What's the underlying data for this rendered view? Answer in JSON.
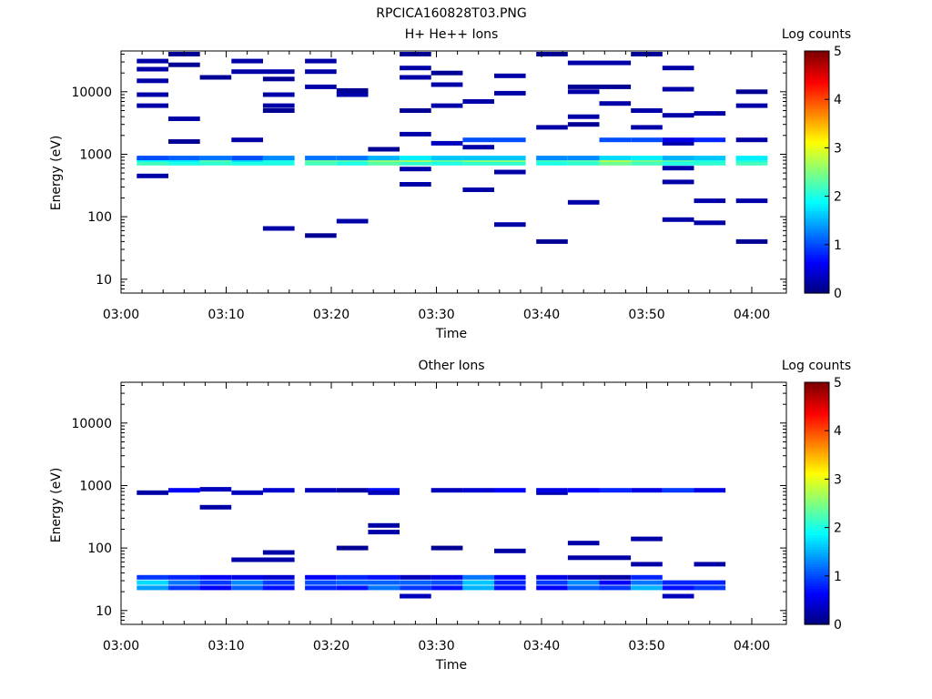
{
  "figure_title": "RPCICA160828T03.PNG",
  "chart_data": [
    {
      "type": "heatmap",
      "title": "H+ He++ Ions",
      "xlabel": "Time",
      "ylabel": "Energy (eV)",
      "colorbar_label": "Log counts",
      "colorbar_ticks": [
        "0",
        "1",
        "2",
        "3",
        "4",
        "5"
      ],
      "clim": [
        0,
        5
      ],
      "xlim": [
        "03:00",
        "04:00"
      ],
      "ylim": [
        6,
        45000
      ],
      "yscale": "log",
      "x_ticks": [
        "03:00",
        "03:10",
        "03:20",
        "03:30",
        "03:40",
        "03:50",
        "04:00"
      ],
      "y_ticks": [
        "10",
        "100",
        "1000",
        "10000"
      ],
      "time_bins": [
        "03:03",
        "03:06",
        "03:09",
        "03:12",
        "03:15",
        "03:19",
        "03:22",
        "03:25",
        "03:28",
        "03:31",
        "03:34",
        "03:37",
        "03:41",
        "03:44",
        "03:47",
        "03:50",
        "03:53",
        "03:56",
        "04:00"
      ],
      "cells": [
        [
          0,
          720,
          2.2
        ],
        [
          0,
          820,
          1.9
        ],
        [
          0,
          870,
          1.0
        ],
        [
          0,
          450,
          0.2
        ],
        [
          0,
          6000,
          0.2
        ],
        [
          0,
          9000,
          0.2
        ],
        [
          0,
          15000,
          0.2
        ],
        [
          0,
          23000,
          0.2
        ],
        [
          0,
          31000,
          0.2
        ],
        [
          1,
          720,
          2.0
        ],
        [
          1,
          820,
          1.8
        ],
        [
          1,
          870,
          1.1
        ],
        [
          1,
          1600,
          0.1
        ],
        [
          1,
          3700,
          0.2
        ],
        [
          1,
          27000,
          0.1
        ],
        [
          1,
          40000,
          0.1
        ],
        [
          2,
          720,
          2.1
        ],
        [
          2,
          820,
          2.3
        ],
        [
          2,
          870,
          1.2
        ],
        [
          2,
          17000,
          0.1
        ],
        [
          3,
          720,
          2.0
        ],
        [
          3,
          820,
          1.7
        ],
        [
          3,
          870,
          1.0
        ],
        [
          3,
          1700,
          0.2
        ],
        [
          3,
          21000,
          0.2
        ],
        [
          3,
          31000,
          0.2
        ],
        [
          4,
          720,
          2.0
        ],
        [
          4,
          820,
          2.0
        ],
        [
          4,
          870,
          1.3
        ],
        [
          4,
          65,
          0.2
        ],
        [
          4,
          5000,
          0.1
        ],
        [
          4,
          6000,
          0.2
        ],
        [
          4,
          9000,
          0.2
        ],
        [
          4,
          16000,
          0.1
        ],
        [
          4,
          21000,
          0.2
        ],
        [
          5,
          720,
          2.2
        ],
        [
          5,
          820,
          2.4
        ],
        [
          5,
          870,
          1.2
        ],
        [
          5,
          50,
          0.1
        ],
        [
          5,
          12000,
          0.2
        ],
        [
          5,
          21000,
          0.2
        ],
        [
          5,
          31000,
          0.2
        ],
        [
          6,
          720,
          2.0
        ],
        [
          6,
          820,
          2.3
        ],
        [
          6,
          870,
          1.2
        ],
        [
          6,
          85,
          0.2
        ],
        [
          6,
          9000,
          0.2
        ],
        [
          6,
          10500,
          0.1
        ],
        [
          7,
          720,
          2.3
        ],
        [
          7,
          820,
          2.6
        ],
        [
          7,
          870,
          1.5
        ],
        [
          7,
          1200,
          0.1
        ],
        [
          8,
          580,
          0.2
        ],
        [
          8,
          720,
          2.1
        ],
        [
          8,
          820,
          2.7
        ],
        [
          8,
          870,
          1.8
        ],
        [
          8,
          330,
          0.2
        ],
        [
          8,
          2100,
          0.2
        ],
        [
          8,
          5000,
          0.1
        ],
        [
          8,
          17000,
          0.2
        ],
        [
          8,
          24000,
          0.2
        ],
        [
          8,
          40000,
          0.1
        ],
        [
          9,
          720,
          2.0
        ],
        [
          9,
          820,
          2.4
        ],
        [
          9,
          870,
          1.6
        ],
        [
          9,
          1500,
          0.3
        ],
        [
          9,
          6000,
          0.2
        ],
        [
          9,
          13000,
          0.2
        ],
        [
          9,
          20000,
          0.1
        ],
        [
          10,
          720,
          2.1
        ],
        [
          10,
          820,
          2.6
        ],
        [
          10,
          870,
          1.6
        ],
        [
          10,
          1300,
          0.2
        ],
        [
          10,
          1700,
          1.0
        ],
        [
          10,
          270,
          0.2
        ],
        [
          10,
          7000,
          0.2
        ],
        [
          11,
          720,
          2.1
        ],
        [
          11,
          820,
          2.6
        ],
        [
          11,
          870,
          1.6
        ],
        [
          11,
          520,
          0.2
        ],
        [
          11,
          1700,
          1.0
        ],
        [
          11,
          75,
          0.2
        ],
        [
          11,
          9500,
          0.2
        ],
        [
          11,
          18000,
          0.2
        ],
        [
          12,
          720,
          2.0
        ],
        [
          12,
          820,
          2.2
        ],
        [
          12,
          870,
          1.3
        ],
        [
          12,
          40,
          0.1
        ],
        [
          12,
          2700,
          0.2
        ],
        [
          12,
          40000,
          0.1
        ],
        [
          13,
          720,
          2.1
        ],
        [
          13,
          820,
          2.3
        ],
        [
          13,
          870,
          1.3
        ],
        [
          13,
          170,
          0.2
        ],
        [
          13,
          3000,
          0.1
        ],
        [
          13,
          4000,
          0.2
        ],
        [
          13,
          10000,
          0.2
        ],
        [
          13,
          12000,
          0.1
        ],
        [
          13,
          29000,
          0.2
        ],
        [
          14,
          720,
          2.4
        ],
        [
          14,
          820,
          2.8
        ],
        [
          14,
          870,
          1.7
        ],
        [
          14,
          1700,
          1.0
        ],
        [
          14,
          6500,
          0.2
        ],
        [
          14,
          12000,
          0.1
        ],
        [
          14,
          29000,
          0.2
        ],
        [
          15,
          720,
          2.2
        ],
        [
          15,
          820,
          2.5
        ],
        [
          15,
          870,
          1.8
        ],
        [
          15,
          1700,
          1.0
        ],
        [
          15,
          2700,
          0.2
        ],
        [
          15,
          5000,
          0.2
        ],
        [
          15,
          40000,
          0.1
        ],
        [
          16,
          600,
          0.2
        ],
        [
          16,
          720,
          2.0
        ],
        [
          16,
          820,
          2.3
        ],
        [
          16,
          870,
          1.5
        ],
        [
          16,
          360,
          0.2
        ],
        [
          16,
          90,
          0.2
        ],
        [
          16,
          1500,
          0.2
        ],
        [
          16,
          1700,
          0.5
        ],
        [
          16,
          4200,
          0.2
        ],
        [
          16,
          11000,
          0.2
        ],
        [
          16,
          24000,
          0.2
        ],
        [
          17,
          720,
          2.1
        ],
        [
          17,
          820,
          2.0
        ],
        [
          17,
          870,
          1.6
        ],
        [
          17,
          1700,
          0.8
        ],
        [
          17,
          80,
          0.2
        ],
        [
          17,
          180,
          0.2
        ],
        [
          17,
          4500,
          0.2
        ],
        [
          18,
          720,
          2.2
        ],
        [
          18,
          820,
          2.0
        ],
        [
          18,
          870,
          1.8
        ],
        [
          18,
          40,
          0.1
        ],
        [
          18,
          180,
          0.2
        ],
        [
          18,
          1700,
          0.2
        ],
        [
          18,
          6000,
          0.2
        ],
        [
          18,
          10000,
          0.1
        ]
      ]
    },
    {
      "type": "heatmap",
      "title": "Other Ions",
      "xlabel": "Time",
      "ylabel": "Energy (eV)",
      "colorbar_label": "Log counts",
      "colorbar_ticks": [
        "0",
        "1",
        "2",
        "3",
        "4",
        "5"
      ],
      "clim": [
        0,
        5
      ],
      "xlim": [
        "03:00",
        "04:00"
      ],
      "ylim": [
        6,
        45000
      ],
      "yscale": "log",
      "x_ticks": [
        "03:00",
        "03:10",
        "03:20",
        "03:30",
        "03:40",
        "03:50",
        "04:00"
      ],
      "y_ticks": [
        "10",
        "100",
        "1000",
        "10000"
      ],
      "time_bins": [
        "03:03",
        "03:06",
        "03:09",
        "03:12",
        "03:15",
        "03:19",
        "03:22",
        "03:25",
        "03:28",
        "03:31",
        "03:34",
        "03:37",
        "03:41",
        "03:44",
        "03:47",
        "03:50",
        "03:53",
        "03:56",
        "04:00"
      ],
      "cells": [
        [
          0,
          23,
          1.4
        ],
        [
          0,
          28,
          1.7
        ],
        [
          0,
          34,
          0.9
        ],
        [
          0,
          770,
          0.2
        ],
        [
          1,
          23,
          0.9
        ],
        [
          1,
          28,
          1.2
        ],
        [
          1,
          34,
          0.8
        ],
        [
          1,
          840,
          0.6
        ],
        [
          2,
          23,
          0.6
        ],
        [
          2,
          28,
          0.9
        ],
        [
          2,
          34,
          0.6
        ],
        [
          2,
          870,
          0.3
        ],
        [
          2,
          450,
          0.2
        ],
        [
          3,
          23,
          1.1
        ],
        [
          3,
          28,
          1.3
        ],
        [
          3,
          34,
          0.5
        ],
        [
          3,
          770,
          0.3
        ],
        [
          3,
          65,
          0.2
        ],
        [
          4,
          23,
          0.7
        ],
        [
          4,
          28,
          0.9
        ],
        [
          4,
          34,
          0.4
        ],
        [
          4,
          840,
          0.4
        ],
        [
          4,
          65,
          0.2
        ],
        [
          4,
          85,
          0.2
        ],
        [
          5,
          23,
          0.8
        ],
        [
          5,
          28,
          1.0
        ],
        [
          5,
          34,
          0.6
        ],
        [
          5,
          840,
          0.3
        ],
        [
          6,
          23,
          0.7
        ],
        [
          6,
          28,
          1.1
        ],
        [
          6,
          34,
          0.8
        ],
        [
          6,
          840,
          0.2
        ],
        [
          6,
          100,
          0.1
        ],
        [
          7,
          23,
          1.2
        ],
        [
          7,
          28,
          1.1
        ],
        [
          7,
          34,
          0.7
        ],
        [
          7,
          840,
          0.7
        ],
        [
          7,
          770,
          0.3
        ],
        [
          7,
          180,
          0.2
        ],
        [
          7,
          230,
          0.2
        ],
        [
          8,
          17,
          0.3
        ],
        [
          8,
          23,
          0.9
        ],
        [
          8,
          28,
          1.1
        ],
        [
          8,
          34,
          0.3
        ],
        [
          9,
          23,
          0.7
        ],
        [
          9,
          28,
          1.0
        ],
        [
          9,
          34,
          0.5
        ],
        [
          9,
          840,
          0.3
        ],
        [
          9,
          100,
          0.1
        ],
        [
          10,
          23,
          1.5
        ],
        [
          10,
          28,
          1.6
        ],
        [
          10,
          34,
          1.2
        ],
        [
          10,
          840,
          0.4
        ],
        [
          11,
          23,
          0.7
        ],
        [
          11,
          28,
          0.8
        ],
        [
          11,
          34,
          0.6
        ],
        [
          11,
          840,
          0.6
        ],
        [
          11,
          90,
          0.2
        ],
        [
          12,
          23,
          0.6
        ],
        [
          12,
          28,
          0.9
        ],
        [
          12,
          34,
          0.5
        ],
        [
          12,
          770,
          0.2
        ],
        [
          12,
          840,
          0.5
        ],
        [
          13,
          23,
          1.1
        ],
        [
          13,
          28,
          1.3
        ],
        [
          13,
          34,
          0.3
        ],
        [
          13,
          840,
          0.6
        ],
        [
          13,
          70,
          0.2
        ],
        [
          13,
          120,
          0.2
        ],
        [
          14,
          23,
          0.9
        ],
        [
          14,
          28,
          0.6
        ],
        [
          14,
          34,
          0.2
        ],
        [
          14,
          840,
          0.8
        ],
        [
          14,
          70,
          0.2
        ],
        [
          15,
          23,
          1.5
        ],
        [
          15,
          28,
          1.2
        ],
        [
          15,
          34,
          0.8
        ],
        [
          15,
          840,
          0.5
        ],
        [
          15,
          140,
          0.2
        ],
        [
          15,
          55,
          0.2
        ],
        [
          16,
          17,
          0.3
        ],
        [
          16,
          23,
          0.7
        ],
        [
          16,
          28,
          0.8
        ],
        [
          16,
          840,
          0.9
        ],
        [
          17,
          23,
          0.9
        ],
        [
          17,
          28,
          0.8
        ],
        [
          17,
          840,
          0.5
        ],
        [
          17,
          55,
          0.2
        ]
      ]
    }
  ]
}
